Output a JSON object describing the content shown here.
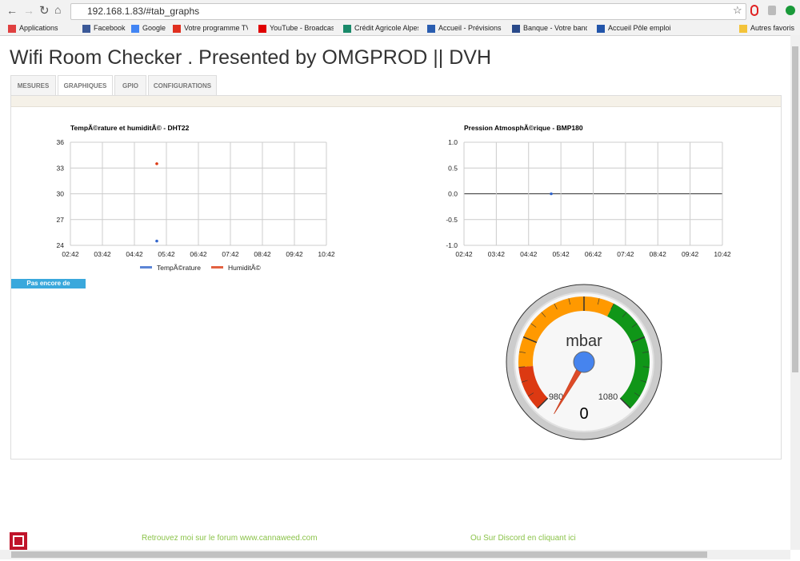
{
  "browser": {
    "url": "192.168.1.83/#tab_graphs",
    "bookmarks": [
      "Applications",
      "Facebook",
      "Google",
      "Votre programme TV",
      "YouTube - Broadcast",
      "Crédit Agricole Alpes",
      "Accueil - Prévisions n",
      "Banque - Votre banq",
      "Accueil Pôle emploi |"
    ],
    "other_bookmarks": "Autres favoris"
  },
  "header": {
    "title": "Wifi Room Checker . Presented by OMGPROD || DVH"
  },
  "tabs": {
    "items": [
      "MESURES",
      "GRAPHIQUES",
      "GPIO",
      "CONFIGURATIONS"
    ],
    "active": 1
  },
  "chart_data": [
    {
      "type": "scatter",
      "title": "TempÃ©rature et humiditÃ© - DHT22",
      "xlim": [
        2.7,
        10.7
      ],
      "xticks": [
        {
          "value": 2.7,
          "label": "02:42"
        },
        {
          "value": 3.7,
          "label": "03:42"
        },
        {
          "value": 4.7,
          "label": "04:42"
        },
        {
          "value": 5.7,
          "label": "05:42"
        },
        {
          "value": 6.7,
          "label": "06:42"
        },
        {
          "value": 7.7,
          "label": "07:42"
        },
        {
          "value": 8.7,
          "label": "08:42"
        },
        {
          "value": 9.7,
          "label": "09:42"
        },
        {
          "value": 10.7,
          "label": "10:42"
        }
      ],
      "ylim": [
        24,
        36
      ],
      "yticks": [
        24,
        27,
        30,
        33,
        36
      ],
      "grid": true,
      "legend": "bottom",
      "series": [
        {
          "name": "TempÃ©rature",
          "color": "#3366cc",
          "x": [
            5.4
          ],
          "values": [
            24.5
          ]
        },
        {
          "name": "HumiditÃ©",
          "color": "#dc3912",
          "x": [
            5.4
          ],
          "values": [
            33.5
          ]
        }
      ]
    },
    {
      "type": "scatter",
      "title": "Pression AtmosphÃ©rique - BMP180",
      "xlim": [
        2.7,
        10.7
      ],
      "xticks": [
        {
          "value": 2.7,
          "label": "02:42"
        },
        {
          "value": 3.7,
          "label": "03:42"
        },
        {
          "value": 4.7,
          "label": "04:42"
        },
        {
          "value": 5.7,
          "label": "05:42"
        },
        {
          "value": 6.7,
          "label": "06:42"
        },
        {
          "value": 7.7,
          "label": "07:42"
        },
        {
          "value": 8.7,
          "label": "08:42"
        },
        {
          "value": 9.7,
          "label": "09:42"
        },
        {
          "value": 10.7,
          "label": "10:42"
        }
      ],
      "ylim": [
        -1,
        1
      ],
      "yticks": [
        {
          "value": -1,
          "label": "-1.0"
        },
        {
          "value": -0.5,
          "label": "-0.5"
        },
        {
          "value": 0,
          "label": "0.0"
        },
        {
          "value": 0.5,
          "label": "0.5"
        },
        {
          "value": 1,
          "label": "1.0"
        }
      ],
      "grid": true,
      "series": [
        {
          "color": "#3366cc",
          "x": [
            5.4
          ],
          "values": [
            0
          ]
        }
      ]
    },
    {
      "type": "gauge",
      "units": "mbar",
      "min": 980,
      "max": 1080,
      "value": 0,
      "ranges": [
        {
          "color": "#dc3912",
          "from": 980,
          "to": 995
        },
        {
          "color": "#ff9900",
          "from": 995,
          "to": 1040
        },
        {
          "color": "#109618",
          "from": 1040,
          "to": 1080
        }
      ]
    }
  ],
  "status": {
    "badge": "Pas encore de donnÃ©es"
  },
  "footer": {
    "forum": "Retrouvez moi sur le forum www.cannaweed.com",
    "discord": "Ou Sur Discord en cliquant ici"
  }
}
